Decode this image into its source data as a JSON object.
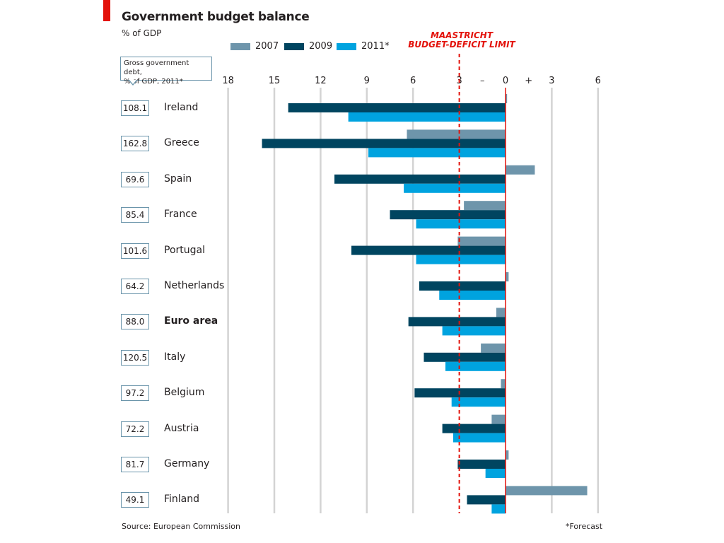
{
  "header": {
    "title": "Government budget balance",
    "subtitle": "% of GDP"
  },
  "colors": {
    "series_2007": "#6e95ab",
    "series_2009": "#004560",
    "series_2011": "#00a3df",
    "accent_red": "#e3120b",
    "grid": "#d3d3d3",
    "box_border": "#6b95ab"
  },
  "legend": [
    {
      "label": "2007",
      "color": "#6e95ab"
    },
    {
      "label": "2009",
      "color": "#004560"
    },
    {
      "label": "2011*",
      "color": "#00a3df"
    }
  ],
  "annotation": {
    "line1": "MAASTRICHT",
    "line2": "BUDGET-DEFICIT LIMIT"
  },
  "debt_callout": {
    "line1": "Gross government debt,",
    "line2": "% of GDP, 2011*"
  },
  "axis": {
    "tick_labels": [
      "18",
      "15",
      "12",
      "9",
      "6",
      "3",
      "–",
      "0",
      "+",
      "3",
      "6"
    ]
  },
  "chart_data": {
    "type": "bar",
    "orientation": "horizontal",
    "title": "Government budget balance",
    "subtitle": "% of GDP",
    "xlim": [
      -18,
      6
    ],
    "grid": true,
    "legend_position": "top",
    "reference_line": {
      "value": -3,
      "label": "MAASTRICHT BUDGET-DEFICIT LIMIT"
    },
    "categories": [
      "Ireland",
      "Greece",
      "Spain",
      "France",
      "Portugal",
      "Netherlands",
      "Euro area",
      "Italy",
      "Belgium",
      "Austria",
      "Germany",
      "Finland"
    ],
    "gross_debt_2011": [
      "108.1",
      "162.8",
      "69.6",
      "85.4",
      "101.6",
      "64.2",
      "88.0",
      "120.5",
      "97.2",
      "72.2",
      "81.7",
      "49.1"
    ],
    "series": [
      {
        "name": "2007",
        "values": [
          0.1,
          -6.4,
          1.9,
          -2.7,
          -3.1,
          0.2,
          -0.6,
          -1.6,
          -0.3,
          -0.9,
          0.2,
          5.3
        ]
      },
      {
        "name": "2009",
        "values": [
          -14.1,
          -15.8,
          -11.1,
          -7.5,
          -10.0,
          -5.6,
          -6.3,
          -5.3,
          -5.9,
          -4.1,
          -3.1,
          -2.5
        ]
      },
      {
        "name": "2011*",
        "values": [
          -10.2,
          -8.9,
          -6.6,
          -5.8,
          -5.8,
          -4.3,
          -4.1,
          -3.9,
          -3.5,
          -3.4,
          -1.3,
          -0.9
        ]
      }
    ]
  },
  "footer": {
    "source": "Source: European Commission",
    "note": "*Forecast"
  }
}
